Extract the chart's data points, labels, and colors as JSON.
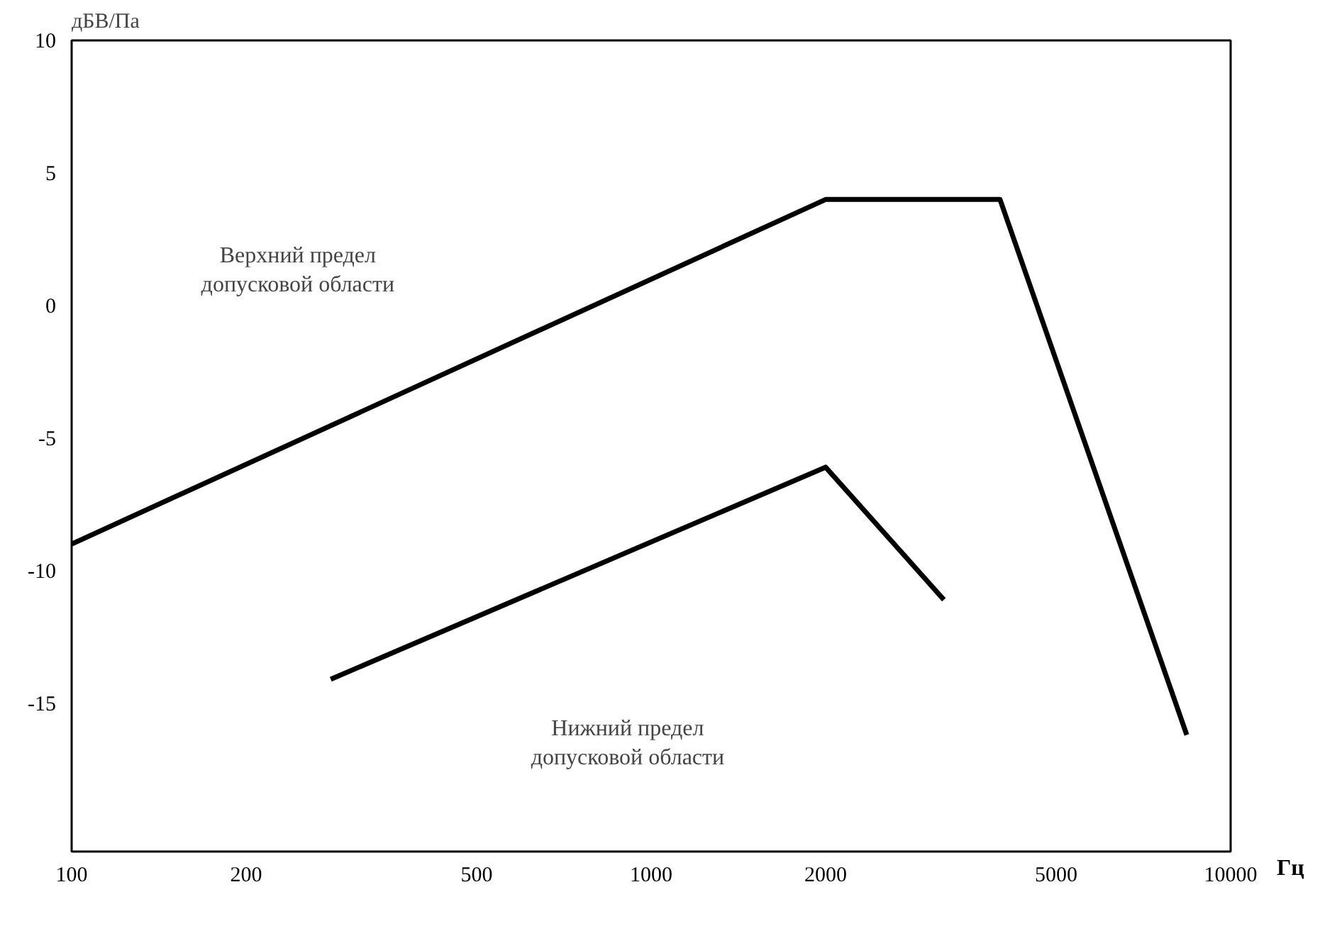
{
  "chart_data": {
    "type": "line",
    "ylabel": "дБВ/Па",
    "xlabel": "Гц",
    "log": "x",
    "xlim": [
      100,
      10000
    ],
    "xticks": [
      100,
      200,
      500,
      1000,
      2000,
      5000,
      10000
    ],
    "ylim": [
      -20.6,
      10
    ],
    "yticks": [
      10,
      5,
      0,
      -5,
      -10,
      -15
    ],
    "grid": false,
    "marker": "none",
    "line_style": "solid",
    "series": [
      {
        "color": "#000000",
        "x": [
          100,
          2000,
          4000,
          8400
        ],
        "values": [
          -9,
          4,
          4,
          -16.2
        ]
      },
      {
        "color": "#000000",
        "x": [
          280,
          2000,
          3200
        ],
        "values": [
          -14.1,
          -6.1,
          -11.1
        ]
      }
    ],
    "annotations": [
      "Верхний предел\nдопусковой области",
      "Нижний предел\nдопусковой области"
    ]
  }
}
